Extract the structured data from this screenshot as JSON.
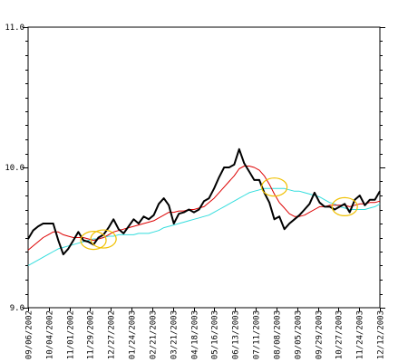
{
  "chart_data": {
    "type": "line",
    "title": "",
    "xlabel": "",
    "ylabel": "",
    "ylim": [
      9.0,
      11.0
    ],
    "y_ticks": [
      "9.0",
      "10.0",
      "11.0"
    ],
    "x_tick_labels": [
      "09/06/2002",
      "10/04/2002",
      "11/01/2002",
      "11/29/2002",
      "12/27/2002",
      "01/24/2003",
      "02/21/2003",
      "03/21/2003",
      "04/18/2003",
      "05/16/2003",
      "06/13/2003",
      "07/11/2003",
      "08/08/2003",
      "09/05/2003",
      "09/29/2003",
      "10/27/2003",
      "11/24/2003",
      "12/12/2003"
    ],
    "grid": false,
    "legend": "none",
    "series": [
      {
        "color": "#000000",
        "values": [
          9.49,
          9.55,
          9.58,
          9.6,
          9.6,
          9.6,
          9.48,
          9.38,
          9.42,
          9.48,
          9.54,
          9.48,
          9.47,
          9.45,
          9.5,
          9.52,
          9.57,
          9.63,
          9.56,
          9.53,
          9.58,
          9.63,
          9.6,
          9.65,
          9.63,
          9.66,
          9.74,
          9.78,
          9.73,
          9.6,
          9.67,
          9.68,
          9.7,
          9.68,
          9.7,
          9.76,
          9.78,
          9.85,
          9.93,
          10.0,
          10.0,
          10.02,
          10.13,
          10.03,
          9.97,
          9.91,
          9.91,
          9.82,
          9.75,
          9.63,
          9.65,
          9.56,
          9.6,
          9.63,
          9.66,
          9.7,
          9.74,
          9.82,
          9.75,
          9.72,
          9.72,
          9.7,
          9.72,
          9.74,
          9.68,
          9.77,
          9.8,
          9.73,
          9.77,
          9.77,
          9.83
        ]
      },
      {
        "color": "#dd0000",
        "values": [
          9.41,
          9.44,
          9.47,
          9.5,
          9.52,
          9.54,
          9.54,
          9.52,
          9.51,
          9.5,
          9.5,
          9.5,
          9.49,
          9.48,
          9.49,
          9.5,
          9.52,
          9.54,
          9.55,
          9.56,
          9.57,
          9.58,
          9.59,
          9.6,
          9.61,
          9.62,
          9.64,
          9.66,
          9.68,
          9.68,
          9.69,
          9.69,
          9.7,
          9.7,
          9.71,
          9.72,
          9.75,
          9.78,
          9.82,
          9.86,
          9.9,
          9.94,
          9.99,
          10.01,
          10.01,
          10.0,
          9.98,
          9.94,
          9.88,
          9.81,
          9.75,
          9.71,
          9.67,
          9.65,
          9.65,
          9.66,
          9.68,
          9.7,
          9.72,
          9.72,
          9.73,
          9.73,
          9.73,
          9.73,
          9.72,
          9.73,
          9.74,
          9.74,
          9.75,
          9.75,
          9.76
        ]
      },
      {
        "color": "#33dddd",
        "values": [
          9.3,
          9.32,
          9.34,
          9.36,
          9.38,
          9.4,
          9.42,
          9.43,
          9.44,
          9.45,
          9.46,
          9.47,
          9.48,
          9.49,
          9.49,
          9.5,
          9.51,
          9.51,
          9.52,
          9.52,
          9.52,
          9.52,
          9.53,
          9.53,
          9.53,
          9.54,
          9.55,
          9.57,
          9.58,
          9.59,
          9.6,
          9.61,
          9.62,
          9.63,
          9.64,
          9.65,
          9.66,
          9.68,
          9.7,
          9.72,
          9.74,
          9.76,
          9.78,
          9.8,
          9.82,
          9.83,
          9.84,
          9.85,
          9.85,
          9.85,
          9.85,
          9.85,
          9.84,
          9.83,
          9.83,
          9.82,
          9.81,
          9.8,
          9.79,
          9.77,
          9.75,
          9.74,
          9.72,
          9.71,
          9.7,
          9.7,
          9.7,
          9.7,
          9.71,
          9.72,
          9.74
        ]
      }
    ],
    "highlight_circles": [
      {
        "center_index": 13,
        "center_value": 9.48,
        "color": "#f0c000"
      },
      {
        "center_index": 15,
        "center_value": 9.49,
        "color": "#f0c000"
      },
      {
        "center_index": 49,
        "center_value": 9.86,
        "color": "#f0c000"
      },
      {
        "center_index": 63,
        "center_value": 9.72,
        "color": "#f0c000"
      }
    ]
  }
}
